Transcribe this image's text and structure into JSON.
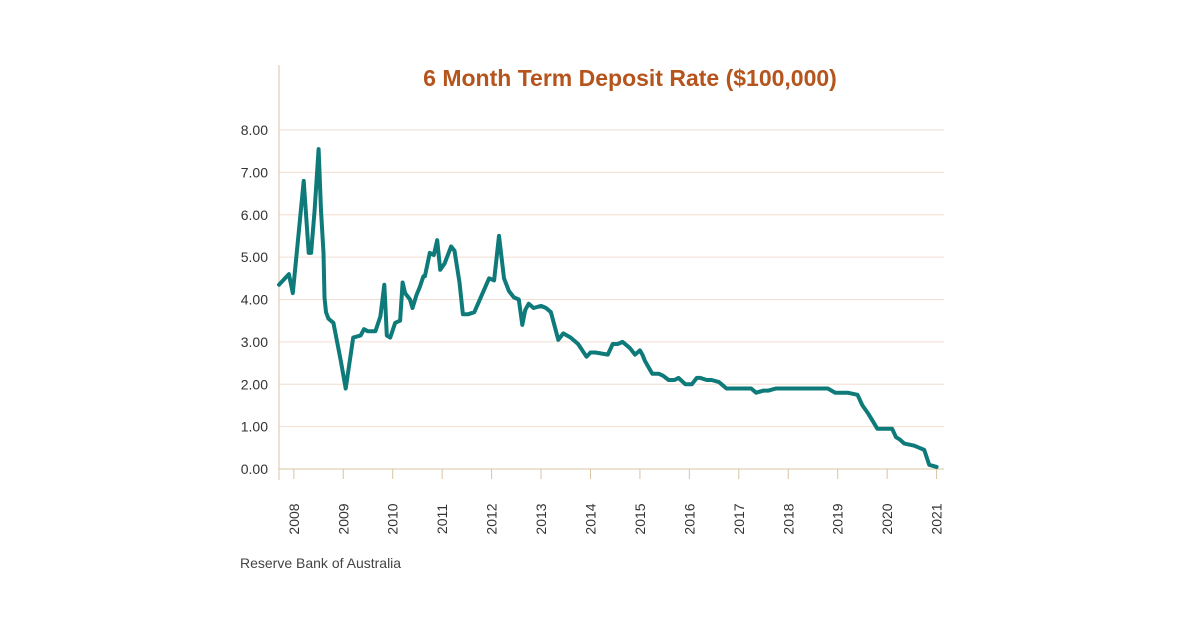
{
  "colors": {
    "title": "#b5541c",
    "line": "#0e7a7a",
    "grid": "#f2ddd0",
    "axis": "#d9c4a3"
  },
  "source": "Reserve Bank of Australia",
  "chart_data": {
    "type": "line",
    "title": "6 Month Term Deposit Rate ($100,000)",
    "xlabel": "",
    "ylabel": "",
    "ylim": [
      0,
      8
    ],
    "xlim": [
      2007.7,
      2021.15
    ],
    "y_tick_labels": [
      "0.00",
      "1.00",
      "2.00",
      "3.00",
      "4.00",
      "5.00",
      "6.00",
      "7.00",
      "8.00"
    ],
    "y_ticks": [
      0,
      1,
      2,
      3,
      4,
      5,
      6,
      7,
      8
    ],
    "x_tick_labels": [
      "2008",
      "2009",
      "2010",
      "2011",
      "2012",
      "2013",
      "2014",
      "2015",
      "2016",
      "2017",
      "2018",
      "2019",
      "2020",
      "2021"
    ],
    "x_ticks": [
      2008,
      2009,
      2010,
      2011,
      2012,
      2013,
      2014,
      2015,
      2016,
      2017,
      2018,
      2019,
      2020,
      2021
    ],
    "grid": "horizontal",
    "legend": "none",
    "series": [
      {
        "x": [
          2007.7,
          2007.9,
          2007.98,
          2008.1,
          2008.2,
          2008.3,
          2008.35,
          2008.42,
          2008.5,
          2008.55,
          2008.6,
          2008.62,
          2008.65,
          2008.7,
          2008.8,
          2008.95,
          2009.05,
          2009.2,
          2009.35,
          2009.42,
          2009.5,
          2009.65,
          2009.75,
          2009.83,
          2009.85,
          2009.88,
          2009.95,
          2010.05,
          2010.15,
          2010.2,
          2010.25,
          2010.35,
          2010.4,
          2010.48,
          2010.55,
          2010.62,
          2010.65,
          2010.75,
          2010.83,
          2010.9,
          2010.96,
          2011.05,
          2011.18,
          2011.25,
          2011.35,
          2011.42,
          2011.52,
          2011.65,
          2011.95,
          2012.05,
          2012.15,
          2012.2,
          2012.25,
          2012.35,
          2012.45,
          2012.55,
          2012.62,
          2012.68,
          2012.75,
          2012.85,
          2013.0,
          2013.1,
          2013.2,
          2013.35,
          2013.45,
          2013.6,
          2013.75,
          2013.92,
          2014.0,
          2014.1,
          2014.35,
          2014.45,
          2014.55,
          2014.65,
          2014.8,
          2014.9,
          2015.0,
          2015.05,
          2015.1,
          2015.25,
          2015.38,
          2015.47,
          2015.58,
          2015.7,
          2015.78,
          2015.92,
          2016.05,
          2016.15,
          2016.22,
          2016.35,
          2016.45,
          2016.6,
          2016.75,
          2016.85,
          2017.0,
          2017.15,
          2017.25,
          2017.35,
          2017.5,
          2017.6,
          2017.75,
          2017.9,
          2018.2,
          2018.5,
          2018.8,
          2018.95,
          2019.05,
          2019.2,
          2019.4,
          2019.5,
          2019.62,
          2019.7,
          2019.8,
          2019.95,
          2020.1,
          2020.18,
          2020.25,
          2020.35,
          2020.55,
          2020.65,
          2020.75,
          2020.85,
          2021.0
        ],
        "values": [
          4.35,
          4.6,
          4.15,
          5.6,
          6.8,
          5.1,
          5.1,
          6.1,
          7.55,
          6.1,
          5.1,
          4.05,
          3.7,
          3.55,
          3.45,
          2.55,
          1.9,
          3.1,
          3.15,
          3.3,
          3.25,
          3.25,
          3.6,
          4.35,
          3.9,
          3.15,
          3.1,
          3.45,
          3.5,
          4.4,
          4.15,
          4.0,
          3.8,
          4.1,
          4.3,
          4.55,
          4.55,
          5.1,
          5.05,
          5.4,
          4.7,
          4.85,
          5.25,
          5.15,
          4.4,
          3.65,
          3.65,
          3.7,
          4.5,
          4.45,
          5.5,
          5.0,
          4.5,
          4.2,
          4.05,
          4.0,
          3.4,
          3.75,
          3.9,
          3.8,
          3.85,
          3.8,
          3.7,
          3.05,
          3.2,
          3.1,
          2.95,
          2.65,
          2.75,
          2.75,
          2.7,
          2.95,
          2.95,
          3.0,
          2.85,
          2.7,
          2.8,
          2.7,
          2.55,
          2.25,
          2.25,
          2.2,
          2.1,
          2.1,
          2.15,
          2.0,
          2.0,
          2.15,
          2.15,
          2.1,
          2.1,
          2.05,
          1.9,
          1.9,
          1.9,
          1.9,
          1.9,
          1.8,
          1.85,
          1.85,
          1.9,
          1.9,
          1.9,
          1.9,
          1.9,
          1.8,
          1.8,
          1.8,
          1.75,
          1.5,
          1.3,
          1.15,
          0.95,
          0.95,
          0.95,
          0.75,
          0.7,
          0.6,
          0.55,
          0.5,
          0.45,
          0.1,
          0.05
        ]
      }
    ]
  }
}
